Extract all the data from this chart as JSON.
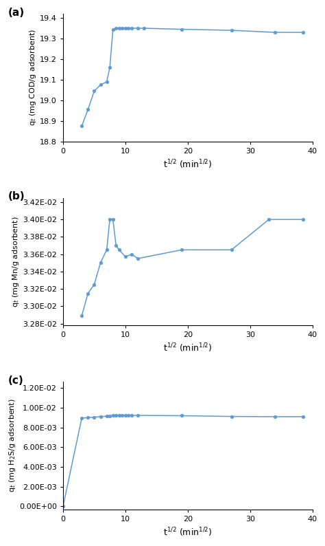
{
  "plot_a": {
    "x": [
      3.0,
      4.0,
      5.0,
      6.0,
      7.0,
      7.5,
      8.0,
      8.5,
      9.0,
      9.5,
      10.0,
      10.5,
      11.0,
      12.0,
      13.0,
      19.0,
      27.0,
      34.0,
      38.5
    ],
    "y": [
      18.875,
      18.955,
      19.045,
      19.075,
      19.09,
      19.16,
      19.345,
      19.35,
      19.35,
      19.35,
      19.35,
      19.35,
      19.35,
      19.35,
      19.35,
      19.345,
      19.34,
      19.33,
      19.33
    ],
    "xlabel": "t$^{1/2}$ (min$^{1/2}$)",
    "ylabel": "q$_t$ (mg COD/g adsorbent)",
    "xlim": [
      0,
      40
    ],
    "ylim": [
      18.8,
      19.42
    ],
    "yticks": [
      18.8,
      18.9,
      19.0,
      19.1,
      19.2,
      19.3,
      19.4
    ],
    "xticks": [
      0,
      10,
      20,
      30,
      40
    ],
    "label": "(a)"
  },
  "plot_b": {
    "x": [
      3.0,
      4.0,
      5.0,
      6.0,
      7.0,
      7.5,
      8.0,
      8.5,
      9.0,
      10.0,
      11.0,
      12.0,
      19.0,
      27.0,
      33.0,
      38.5
    ],
    "y": [
      0.03289,
      0.03315,
      0.03325,
      0.0335,
      0.03365,
      0.034,
      0.034,
      0.0337,
      0.03365,
      0.03357,
      0.0336,
      0.03355,
      0.03365,
      0.03365,
      0.034,
      0.034
    ],
    "xlabel": "t$^{1/2}$ (min$^{1/2}$)",
    "ylabel": "q$_t$ (mg Mn/g adsorbent)",
    "xlim": [
      0,
      40
    ],
    "ylim": [
      0.03278,
      0.03425
    ],
    "yticks": [
      0.0328,
      0.033,
      0.0332,
      0.0334,
      0.0336,
      0.0338,
      0.034,
      0.0342
    ],
    "xticks": [
      0,
      10,
      20,
      30,
      40
    ],
    "label": "(b)"
  },
  "plot_c": {
    "x": [
      0.0,
      3.0,
      4.0,
      5.0,
      6.0,
      7.0,
      7.5,
      8.0,
      8.5,
      9.0,
      9.5,
      10.0,
      10.5,
      11.0,
      12.0,
      19.0,
      27.0,
      34.0,
      38.5
    ],
    "y": [
      0.0,
      0.00895,
      0.009,
      0.00905,
      0.0091,
      0.00915,
      0.00918,
      0.0092,
      0.0092,
      0.00922,
      0.00923,
      0.00923,
      0.00923,
      0.00923,
      0.00923,
      0.0092,
      0.00912,
      0.0091,
      0.0091
    ],
    "xlabel": "t$^{1/2}$ (min$^{1/2}$)",
    "ylabel": "q$_t$ (mg H$_2$S/g adsorbent)",
    "xlim": [
      0,
      40
    ],
    "ylim": [
      -0.0003,
      0.01265
    ],
    "yticks": [
      0.0,
      0.002,
      0.004,
      0.006,
      0.008,
      0.01,
      0.012
    ],
    "xticks": [
      0,
      10,
      20,
      30,
      40
    ],
    "label": "(c)"
  },
  "line_color": "#5B9BD5",
  "marker": "o",
  "markersize": 3.5,
  "linewidth": 1.1
}
